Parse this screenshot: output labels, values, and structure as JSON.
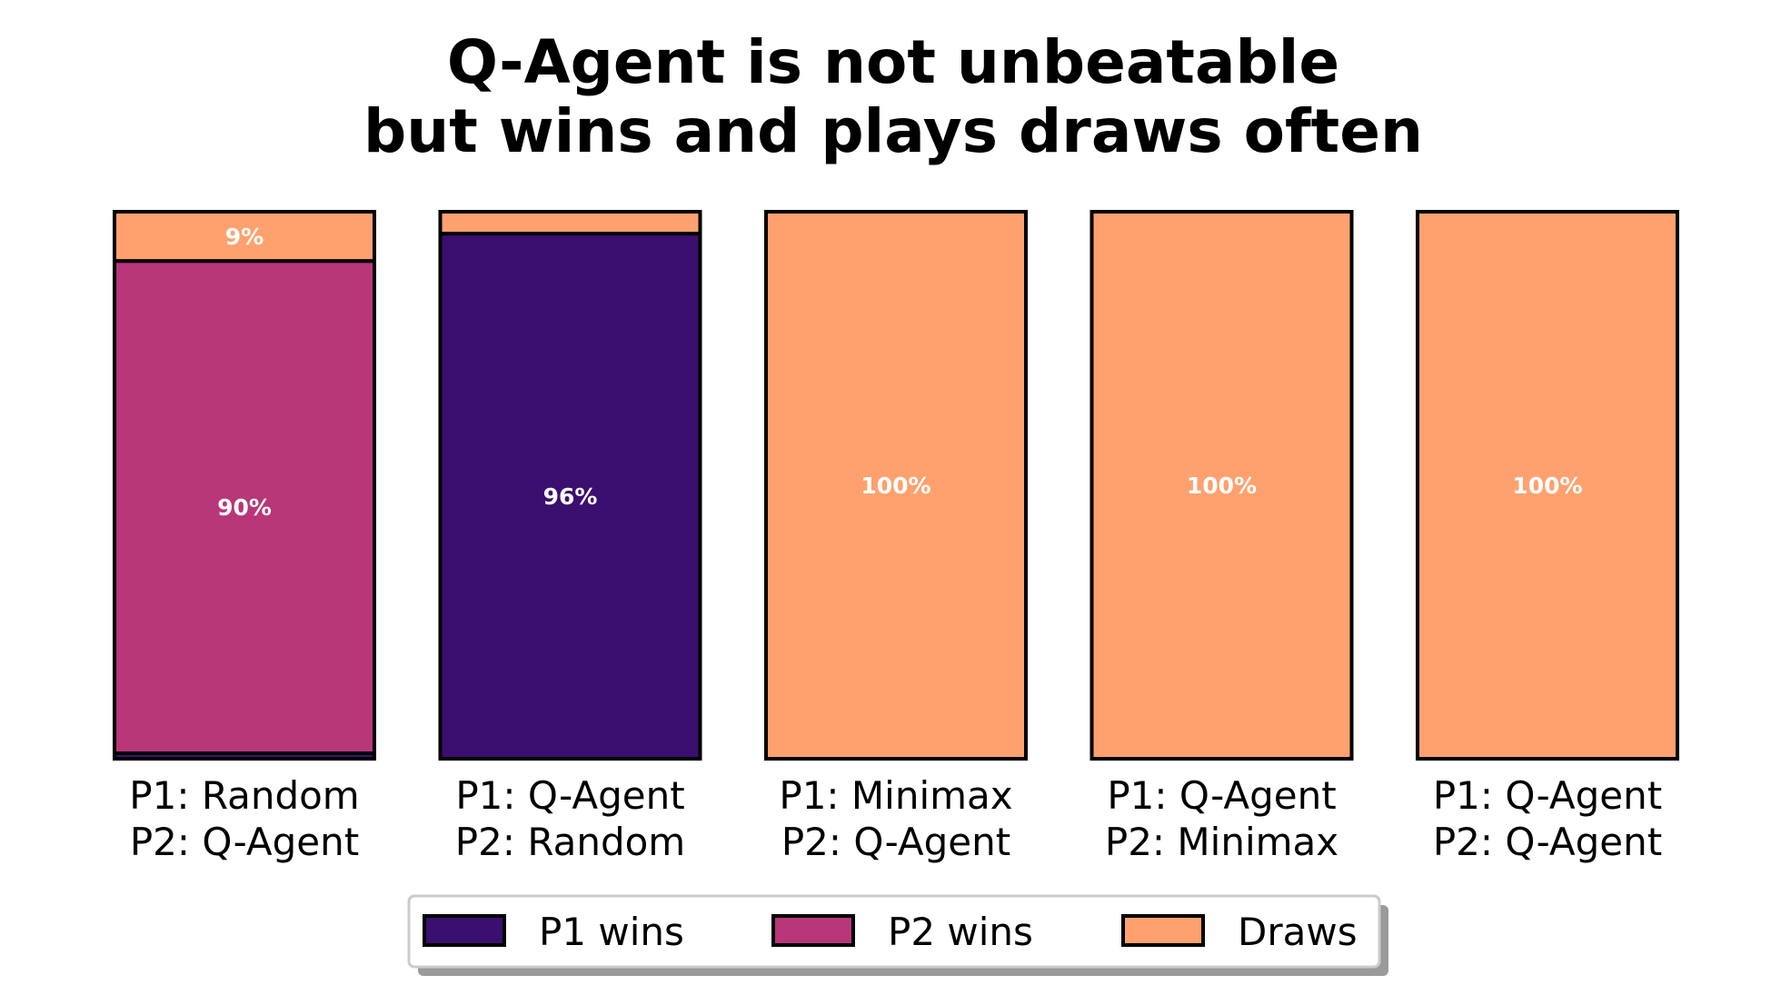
{
  "chart_data": {
    "type": "bar",
    "stacked": true,
    "normalized": true,
    "title": "Q-Agent is not unbeatable\nbut wins and plays draws often",
    "xlabel": "",
    "ylabel": "",
    "ylim": [
      0,
      1
    ],
    "grid": false,
    "categories": [
      "P1: Random\nP2: Q-Agent",
      "P1: Q-Agent\nP2: Random",
      "P1: Minimax\nP2: Q-Agent",
      "P1: Q-Agent\nP2: Minimax",
      "P1: Q-Agent\nP2: Q-Agent"
    ],
    "series": [
      {
        "name": "P1 wins",
        "color": "#3b0f6f",
        "values": [
          0.01,
          0.96,
          0.0,
          0.0,
          0.0
        ],
        "labels": [
          "",
          "96%",
          "",
          "",
          ""
        ]
      },
      {
        "name": "P2 wins",
        "color": "#b73779",
        "values": [
          0.9,
          0.0,
          0.0,
          0.0,
          0.0
        ],
        "labels": [
          "90%",
          "",
          "",
          "",
          ""
        ]
      },
      {
        "name": "Draws",
        "color": "#fea16e",
        "values": [
          0.09,
          0.04,
          1.0,
          1.0,
          1.0
        ],
        "labels": [
          "9%",
          "",
          "100%",
          "100%",
          "100%"
        ]
      }
    ],
    "legend": {
      "position": "bottom-center",
      "entries": [
        "P1 wins",
        "P2 wins",
        "Draws"
      ]
    }
  }
}
